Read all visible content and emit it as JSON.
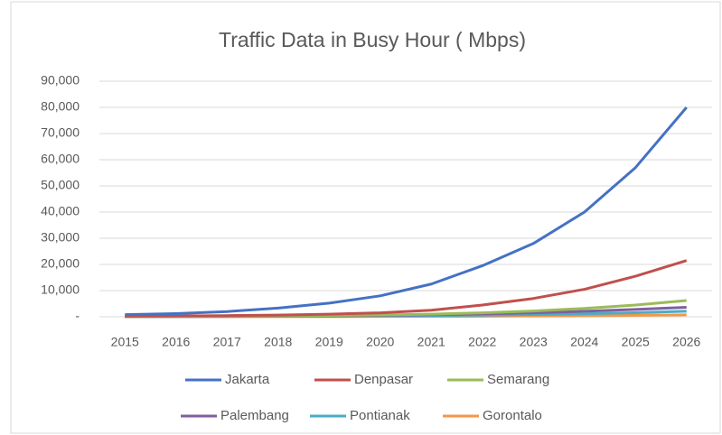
{
  "chart_data": {
    "type": "line",
    "title": "Traffic Data in Busy Hour ( Mbps)",
    "categories": [
      "2015",
      "2016",
      "2017",
      "2018",
      "2019",
      "2020",
      "2021",
      "2022",
      "2023",
      "2024",
      "2025",
      "2026"
    ],
    "series": [
      {
        "name": "Jakarta",
        "color": "#4472c4",
        "values": [
          800,
          1200,
          2000,
          3300,
          5200,
          8000,
          12500,
          19500,
          28000,
          40000,
          57000,
          80000
        ]
      },
      {
        "name": "Denpasar",
        "color": "#c0504d",
        "values": [
          200,
          300,
          450,
          650,
          1000,
          1500,
          2500,
          4500,
          7000,
          10500,
          15500,
          21500
        ]
      },
      {
        "name": "Semarang",
        "color": "#9bbb59",
        "values": [
          100,
          150,
          250,
          350,
          500,
          700,
          1000,
          1500,
          2200,
          3200,
          4500,
          6200
        ]
      },
      {
        "name": "Palembang",
        "color": "#7f5fa0",
        "values": [
          80,
          120,
          180,
          260,
          380,
          550,
          800,
          1100,
          1500,
          2100,
          2800,
          3600
        ]
      },
      {
        "name": "Pontianak",
        "color": "#4bacc6",
        "values": [
          50,
          80,
          120,
          170,
          240,
          330,
          450,
          620,
          850,
          1150,
          1550,
          2100
        ]
      },
      {
        "name": "Gorontalo",
        "color": "#f79646",
        "values": [
          20,
          30,
          45,
          65,
          90,
          120,
          160,
          220,
          300,
          400,
          550,
          750
        ]
      }
    ],
    "ylim": [
      0,
      90000
    ],
    "yticks": [
      {
        "value": 0,
        "label": "-"
      },
      {
        "value": 10000,
        "label": "10,000"
      },
      {
        "value": 20000,
        "label": "20,000"
      },
      {
        "value": 30000,
        "label": "30,000"
      },
      {
        "value": 40000,
        "label": "40,000"
      },
      {
        "value": 50000,
        "label": "50,000"
      },
      {
        "value": 60000,
        "label": "60,000"
      },
      {
        "value": 70000,
        "label": "70,000"
      },
      {
        "value": 80000,
        "label": "80,000"
      },
      {
        "value": 90000,
        "label": "90,000"
      }
    ],
    "grid": true,
    "legend": "bottom"
  }
}
